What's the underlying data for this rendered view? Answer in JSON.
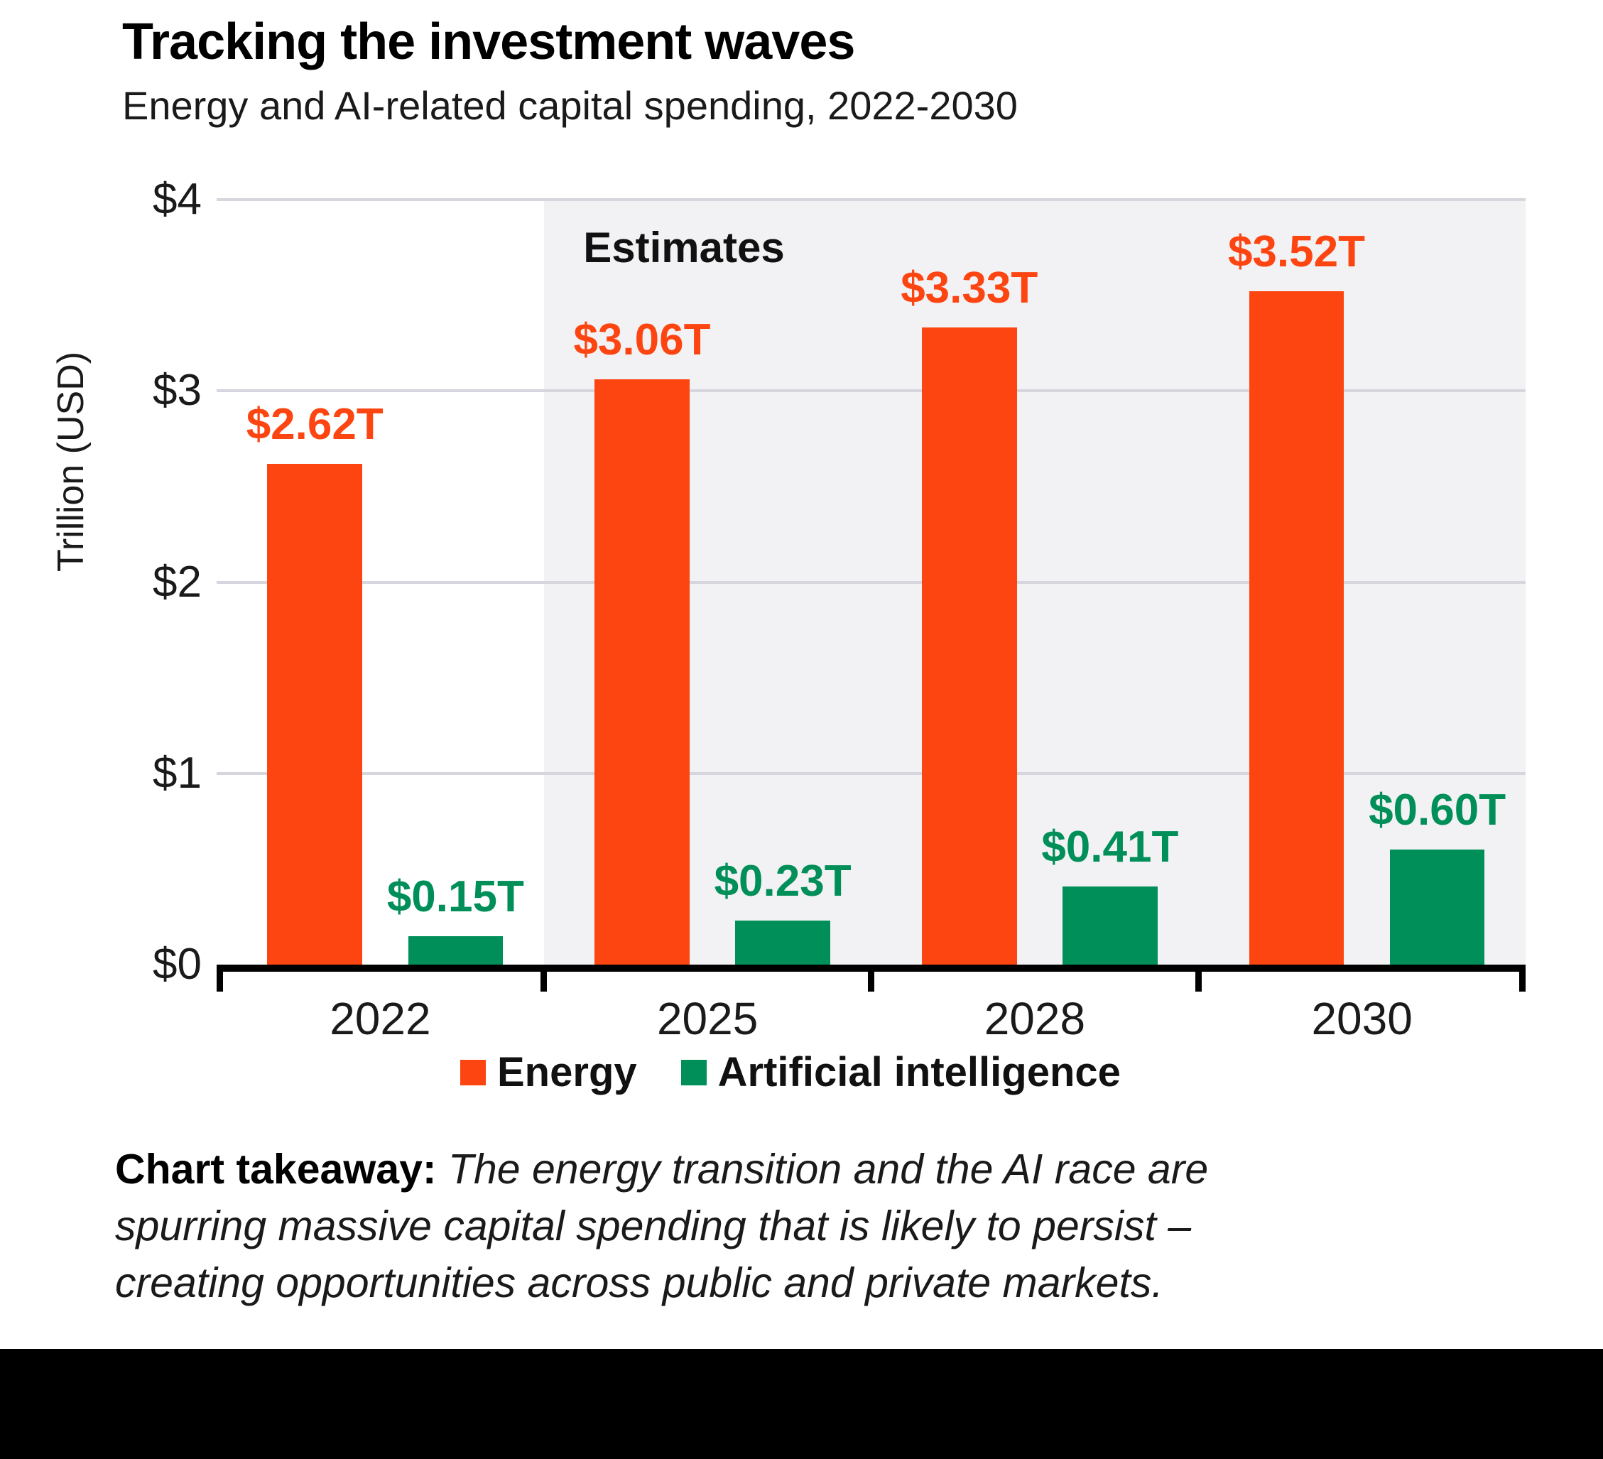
{
  "header": {
    "title": "Tracking the investment waves",
    "subtitle": "Energy and AI-related capital spending, 2022-2030"
  },
  "chart_data": {
    "type": "bar",
    "title": "Tracking the investment waves",
    "subtitle": "Energy and AI-related capital spending, 2022-2030",
    "categories": [
      "2022",
      "2025",
      "2028",
      "2030"
    ],
    "series": [
      {
        "name": "Energy",
        "color": "#FD4512",
        "values": [
          2.62,
          3.06,
          3.33,
          3.52
        ],
        "labels": [
          "$2.62T",
          "$3.06T",
          "$3.33T",
          "$3.52T"
        ]
      },
      {
        "name": "Artificial intelligence",
        "color": "#008E59",
        "values": [
          0.15,
          0.23,
          0.41,
          0.6
        ],
        "labels": [
          "$0.15T",
          "$0.23T",
          "$0.41T",
          "$0.60T"
        ]
      }
    ],
    "ylabel": "Trillion (USD)",
    "ylim": [
      0,
      4
    ],
    "yticks": [
      {
        "value": 0,
        "label": "$0"
      },
      {
        "value": 1,
        "label": "$1"
      },
      {
        "value": 2,
        "label": "$2"
      },
      {
        "value": 3,
        "label": "$3"
      },
      {
        "value": 4,
        "label": "$4"
      }
    ],
    "grid": "horizontal",
    "legend_position": "bottom",
    "annotation": {
      "label": "Estimates",
      "start_category": "2025",
      "region_color": "#F2F2F4"
    }
  },
  "takeaway": {
    "lead": "Chart takeaway:",
    "lines": [
      "The energy transition and the AI race are",
      "spurring massive capital spending that is likely to persist –",
      "creating opportunities across public and private markets."
    ]
  }
}
